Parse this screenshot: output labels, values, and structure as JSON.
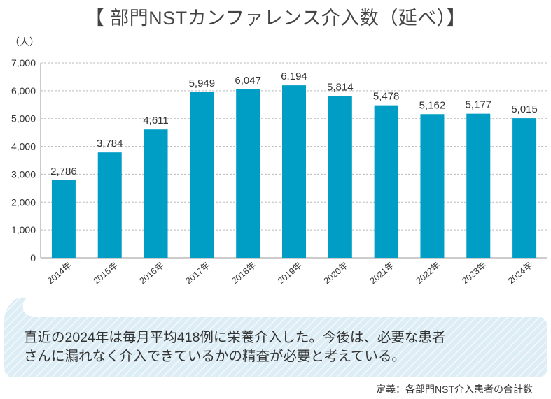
{
  "title": "【 部門NSTカンファレンス介入数（延べ）】",
  "message": {
    "line1": "直近の2024年は毎月平均418例に栄養介入した。今後は、必要な患者",
    "line2": "さんに漏れなく介入できているかの精査が必要と考えている。"
  },
  "definition": "定義：各部門NST介入患者の合計数",
  "colors": {
    "bar": "#009ec5",
    "bubble": "#dcedf5"
  },
  "chart_data": {
    "type": "bar",
    "title": "【 部門NSTカンファレンス介入数（延べ）】",
    "ylabel": "（人）",
    "xlabel": "",
    "ylim": [
      0,
      7000
    ],
    "yticks": [
      "0",
      "1,000",
      "2,000",
      "3,000",
      "4,000",
      "5,000",
      "6,000",
      "7,000"
    ],
    "grid": true,
    "categories": [
      "2014年",
      "2015年",
      "2016年",
      "2017年",
      "2018年",
      "2019年",
      "2020年",
      "2021年",
      "2022年",
      "2023年",
      "2024年"
    ],
    "values": [
      2786,
      3784,
      4611,
      5949,
      6047,
      6194,
      5814,
      5478,
      5162,
      5177,
      5015
    ],
    "labels": [
      "2,786",
      "3,784",
      "4,611",
      "5,949",
      "6,047",
      "6,194",
      "5,814",
      "5,478",
      "5,162",
      "5,177",
      "5,015"
    ]
  }
}
